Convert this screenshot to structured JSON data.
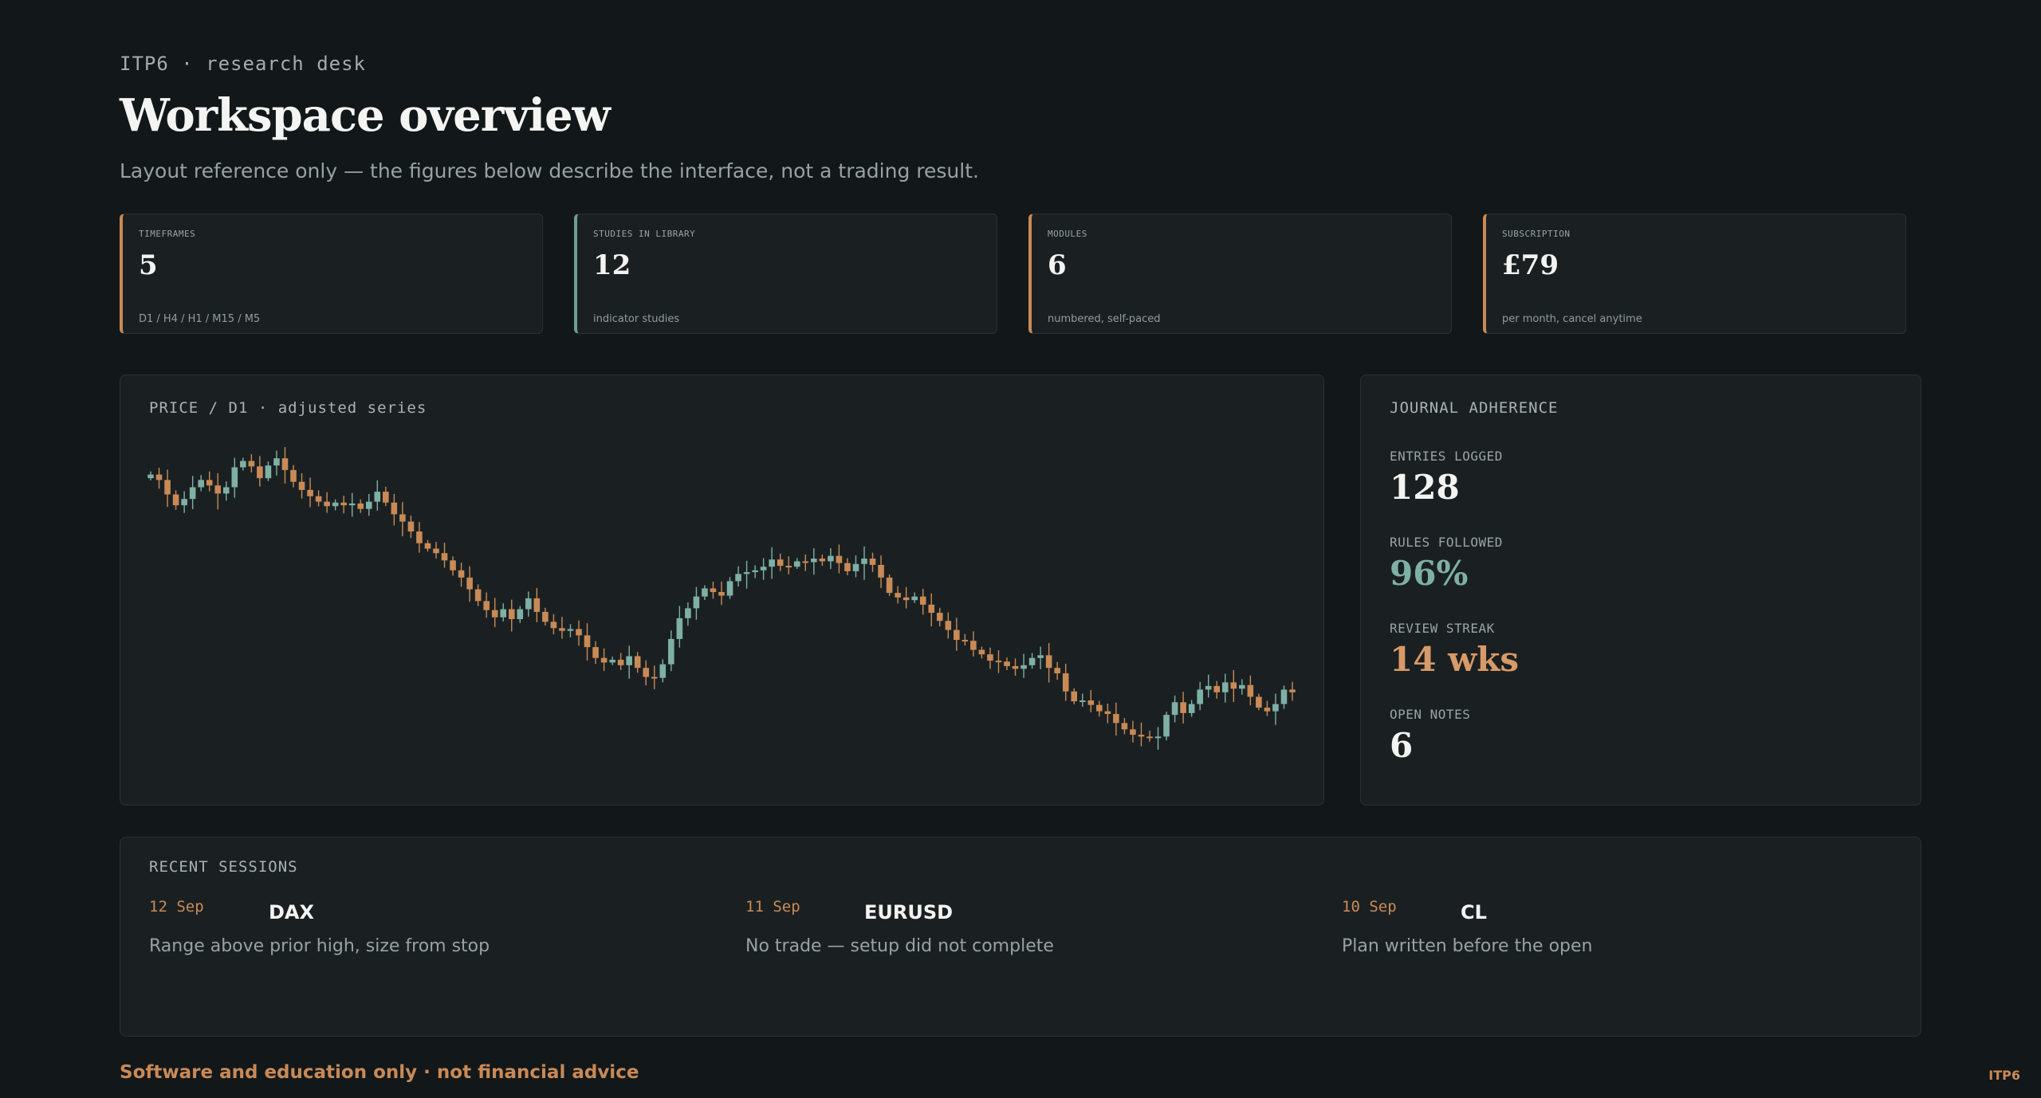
{
  "header": {
    "kicker": "ITP6 · research desk",
    "title": "Workspace overview",
    "subtitle": "Layout reference only — the figures below describe the interface, not a trading result."
  },
  "stats": [
    {
      "label": "TIMEFRAMES",
      "value": "5",
      "note": "D1 / H4 / H1 / M15 / M5",
      "accent": "#c98a56"
    },
    {
      "label": "STUDIES IN LIBRARY",
      "value": "12",
      "note": "indicator studies",
      "accent": "#6f9c94"
    },
    {
      "label": "MODULES",
      "value": "6",
      "note": "numbered, self-paced",
      "accent": "#c98a56"
    },
    {
      "label": "SUBSCRIPTION",
      "value": "£79",
      "note": "per month, cancel anytime",
      "accent": "#c98a56"
    }
  ],
  "chart_panel": {
    "title": "PRICE / D1 · adjusted series"
  },
  "chart_data": {
    "type": "candlestick",
    "title": "PRICE / D1 · adjusted series",
    "xlabel": "",
    "ylabel": "",
    "grid": false,
    "colors": {
      "up": "#7fb0a5",
      "down": "#c98a56"
    },
    "close": [
      100.0,
      99.4,
      97.8,
      96.6,
      97.3,
      98.6,
      99.4,
      98.8,
      97.9,
      98.6,
      100.8,
      101.5,
      100.9,
      99.6,
      101.0,
      101.8,
      100.5,
      99.2,
      98.3,
      97.6,
      97.0,
      96.5,
      96.9,
      96.6,
      96.8,
      96.2,
      97.0,
      98.1,
      96.9,
      95.6,
      94.8,
      93.7,
      92.4,
      91.8,
      91.3,
      90.5,
      89.4,
      88.6,
      87.3,
      86.0,
      85.0,
      84.2,
      85.1,
      84.0,
      85.1,
      86.3,
      84.8,
      83.7,
      83.0,
      82.7,
      82.9,
      82.2,
      80.9,
      79.7,
      79.2,
      79.5,
      78.9,
      79.9,
      78.6,
      77.6,
      77.5,
      79.0,
      81.8,
      84.1,
      85.2,
      86.5,
      87.4,
      87.0,
      86.6,
      88.2,
      89.0,
      89.2,
      89.4,
      89.8,
      90.6,
      89.9,
      89.8,
      90.4,
      90.3,
      90.7,
      90.4,
      91.0,
      90.2,
      89.3,
      90.1,
      90.7,
      90.0,
      88.6,
      86.9,
      86.4,
      86.1,
      86.5,
      85.6,
      84.7,
      83.8,
      82.8,
      81.7,
      81.6,
      80.6,
      80.1,
      79.4,
      79.3,
      78.8,
      78.5,
      78.9,
      79.7,
      80.0,
      78.6,
      78.0,
      76.0,
      74.9,
      75.0,
      74.5,
      73.8,
      73.5,
      72.5,
      71.8,
      71.2,
      71.0,
      70.9,
      71.0,
      73.4,
      74.8,
      73.6,
      74.6,
      76.2,
      76.6,
      75.9,
      77.0,
      76.3,
      76.7,
      75.4,
      74.2,
      73.8,
      74.6,
      76.2,
      75.9
    ]
  },
  "journal": {
    "title": "JOURNAL ADHERENCE",
    "items": [
      {
        "label": "ENTRIES LOGGED",
        "value": "128",
        "color": "#f3f4f2"
      },
      {
        "label": "RULES FOLLOWED",
        "value": "96%",
        "color": "#7fb0a5"
      },
      {
        "label": "REVIEW STREAK",
        "value": "14 wks",
        "color": "#d89a68"
      },
      {
        "label": "OPEN NOTES",
        "value": "6",
        "color": "#f3f4f2"
      }
    ]
  },
  "sessions": {
    "title": "RECENT SESSIONS",
    "items": [
      {
        "date": "12 Sep",
        "symbol": "DAX",
        "note": "Range above prior high, size from stop"
      },
      {
        "date": "11 Sep",
        "symbol": "EURUSD",
        "note": "No trade — setup did not complete"
      },
      {
        "date": "10 Sep",
        "symbol": "CL",
        "note": "Plan written before the open"
      }
    ]
  },
  "footer": {
    "disclaimer": "Software and education only · not financial advice",
    "brand": "ITP6"
  }
}
